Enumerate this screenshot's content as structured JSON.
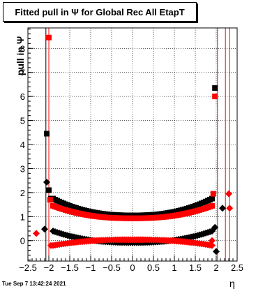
{
  "title": "Fitted pull in  Ψ  for Global Rec All EtapT",
  "ylabel": "pull in  Ψ",
  "xlabel": "η",
  "timestamp": "Tue Sep  7 13:42:24 2021",
  "chart_data": {
    "type": "scatter",
    "title": "Fitted pull in  Ψ  for Global Rec All EtapT",
    "xlabel": "η",
    "ylabel": "pull in  Ψ",
    "xlim": [
      -2.5,
      2.5
    ],
    "ylim": [
      -0.85,
      8.85
    ],
    "x_ticks": [
      -2.5,
      -2,
      -1.5,
      -1,
      -0.5,
      0,
      0.5,
      1,
      1.5,
      2,
      2.5
    ],
    "x_tick_labels": [
      "−2.5",
      "−2",
      "−1.5",
      "−1",
      "−0.5",
      "0",
      "0.5",
      "1",
      "1.5",
      "2",
      "2.5"
    ],
    "y_ticks": [
      0,
      1,
      2,
      3,
      4,
      5,
      6,
      7,
      8
    ],
    "y_tick_labels": [
      "0",
      "1",
      "2",
      "3",
      "4",
      "5",
      "6",
      "7",
      "8"
    ],
    "grid": true,
    "colors": {
      "series_black": "#000000",
      "series_red": "#ff0000"
    },
    "series": [
      {
        "color": "#000000",
        "marker": "square",
        "band": "upper",
        "edge_points": [
          [
            -2.05,
            4.45
          ],
          [
            -2.0,
            2.1
          ],
          [
            -1.95,
            1.75
          ],
          [
            1.97,
            6.35
          ]
        ],
        "curve": {
          "from": -1.9,
          "to": 1.9,
          "center": 1.05,
          "edge": 1.75
        }
      },
      {
        "color": "#000000",
        "marker": "diamond",
        "band": "lower",
        "edge_points": [
          [
            -2.1,
            0.48
          ],
          [
            -2.05,
            2.43
          ],
          [
            1.97,
            0.55
          ],
          [
            2.0,
            -0.45
          ],
          [
            2.15,
            1.35
          ]
        ],
        "curve": {
          "from": -1.9,
          "to": 1.9,
          "center": -0.08,
          "edge": 0.4
        }
      },
      {
        "color": "#ff0000",
        "marker": "square",
        "band": "upper",
        "edge_points": [
          [
            -2.0,
            8.45
          ],
          [
            -1.97,
            1.7
          ],
          [
            1.97,
            6.0
          ],
          [
            1.93,
            1.95
          ]
        ],
        "curve": {
          "from": -1.9,
          "to": 1.9,
          "center": 0.93,
          "edge": 1.45
        }
      },
      {
        "color": "#ff0000",
        "marker": "diamond",
        "band": "lower",
        "edge_points": [
          [
            -2.3,
            0.3
          ],
          [
            -1.95,
            -0.2
          ],
          [
            1.9,
            0.0
          ],
          [
            2.3,
            1.95
          ],
          [
            2.32,
            1.35
          ]
        ],
        "curve": {
          "from": -1.9,
          "to": 1.9,
          "center": 0.04,
          "edge": -0.2
        }
      }
    ],
    "vertical_lines": [
      {
        "x": -2.07,
        "color": "#000000"
      },
      {
        "x": -2.0,
        "color": "#ff0000"
      },
      {
        "x": 2.03,
        "color": "#ff0000"
      },
      {
        "x": 2.22,
        "color": "#ff0000"
      },
      {
        "x": 2.32,
        "color": "#ff0000"
      }
    ]
  }
}
